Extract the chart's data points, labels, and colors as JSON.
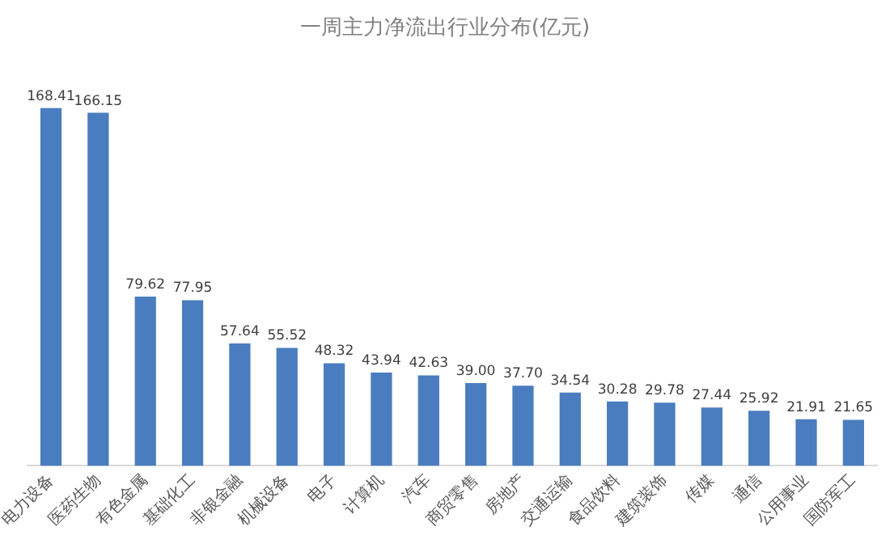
{
  "chart_data": {
    "type": "bar",
    "title": "一周主力净流出行业分布(亿元)",
    "categories": [
      "电力设备",
      "医药生物",
      "有色金属",
      "基础化工",
      "非银金融",
      "机械设备",
      "电子",
      "计算机",
      "汽车",
      "商贸零售",
      "房地产",
      "交通运输",
      "食品饮料",
      "建筑装饰",
      "传媒",
      "通信",
      "公用事业",
      "国防军工"
    ],
    "values": [
      168.41,
      166.15,
      79.62,
      77.95,
      57.64,
      55.52,
      48.32,
      43.94,
      42.63,
      39.0,
      37.7,
      34.54,
      30.28,
      29.78,
      27.44,
      25.92,
      21.91,
      21.65
    ],
    "value_labels": [
      "168.41",
      "166.15",
      "79.62",
      "77.95",
      "57.64",
      "55.52",
      "48.32",
      "43.94",
      "42.63",
      "39.00",
      "37.70",
      "34.54",
      "30.28",
      "29.78",
      "27.44",
      "25.92",
      "21.91",
      "21.65"
    ],
    "color": "#4a7dbf",
    "grid": false,
    "legend": false,
    "tick_labels": "x"
  }
}
